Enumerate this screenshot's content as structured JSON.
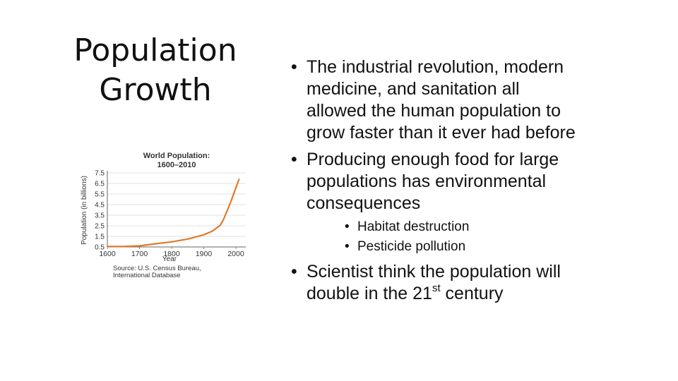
{
  "slide": {
    "title_line1": "Population",
    "title_line2": "Growth"
  },
  "chart_data": {
    "type": "line",
    "title_line1": "World Population:",
    "title_line2": "1600–2010",
    "xlabel": "Year",
    "ylabel": "Population (in billions)",
    "x_ticks": [
      "1600",
      "1700",
      "1800",
      "1900",
      "2000"
    ],
    "y_ticks": [
      "0.5",
      "1.5",
      "2.5",
      "3.5",
      "4.5",
      "5.5",
      "6.5",
      "7.5"
    ],
    "xlim": [
      1600,
      2010
    ],
    "ylim": [
      0.5,
      7.5
    ],
    "series": [
      {
        "color": "#e07a2b",
        "x": [
          1600,
          1650,
          1700,
          1750,
          1800,
          1850,
          1900,
          1927,
          1950,
          1960,
          1974,
          1987,
          1999,
          2010
        ],
        "y": [
          0.55,
          0.55,
          0.6,
          0.8,
          0.98,
          1.25,
          1.65,
          2.0,
          2.52,
          3.0,
          4.0,
          5.0,
          6.0,
          6.9
        ]
      }
    ],
    "source_line1": "Source: U.S. Census Bureau,",
    "source_line2": "International Database"
  },
  "bullets": {
    "b1_line1": "The industrial revolution, modern",
    "b1_line2": "medicine, and sanitation all",
    "b1_line3": "allowed the human population to",
    "b1_line4": "grow faster than it ever had before",
    "b2_line1": "Producing enough food for large",
    "b2_line2": "populations has environmental",
    "b2_line3": "consequences",
    "sub1": "Habitat destruction",
    "sub2": "Pesticide pollution",
    "b3_line1": "Scientist think the population will",
    "b3_line2_pre": "double in the 21",
    "b3_line2_sup": "st",
    "b3_line2_post": " century",
    "marker": "•"
  }
}
